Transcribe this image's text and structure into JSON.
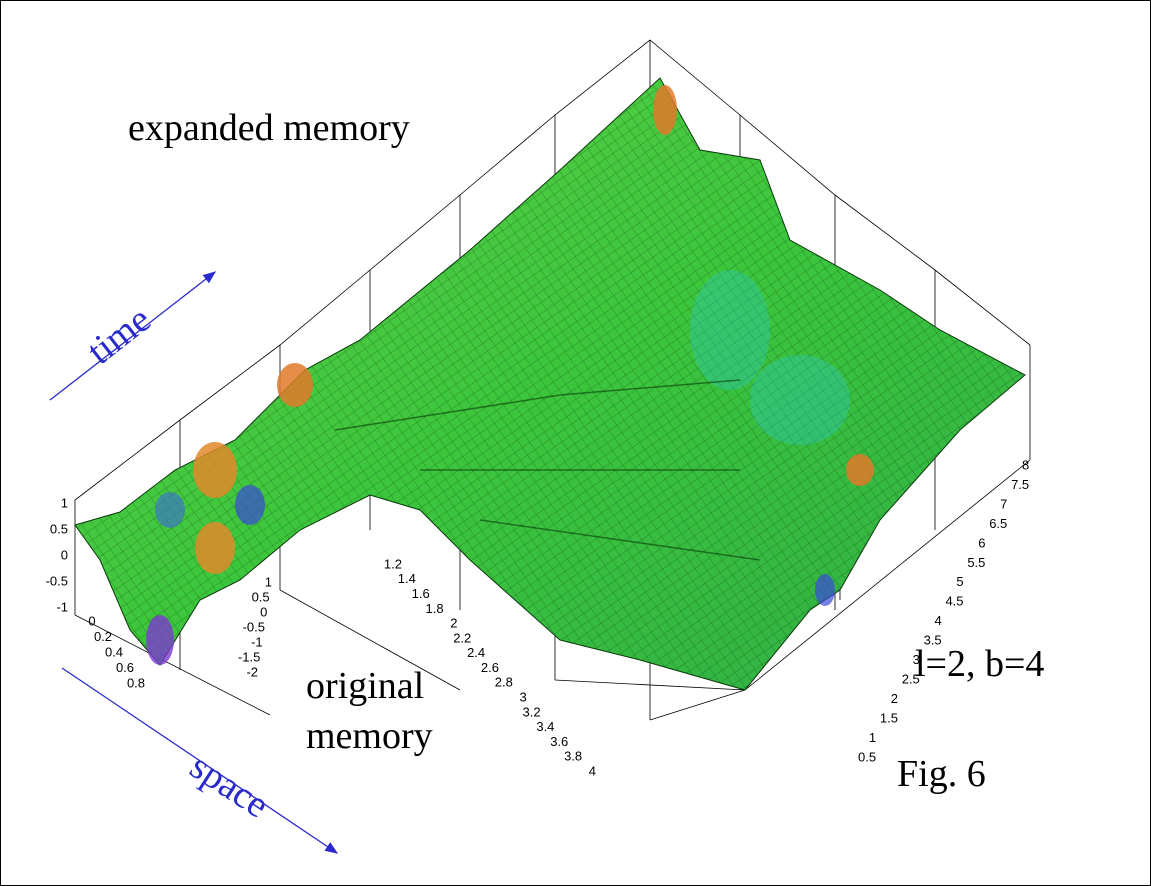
{
  "labels": {
    "expanded": "expanded memory",
    "time": "time",
    "space": "space",
    "original_line1": "original",
    "original_line2": "memory",
    "params": "l=2, b=4",
    "figure": "Fig. 6"
  },
  "axes": {
    "z_ticks": [
      "1",
      "0.5",
      "0",
      "-0.5",
      "-1"
    ],
    "x_ticks": [
      "0",
      "0.2",
      "0.4",
      "0.6",
      "0.8"
    ],
    "t_ticks": [
      "1",
      "0.5",
      "0",
      "-0.5",
      "-1",
      "-1.5",
      "-2"
    ],
    "middle_ticks": [
      "1.2",
      "1.4",
      "1.6",
      "1.8",
      "2",
      "2.2",
      "2.4",
      "2.6",
      "2.8",
      "3",
      "3.2",
      "3.4",
      "3.6",
      "3.8",
      "4"
    ],
    "right_ticks": [
      "8",
      "7.5",
      "7",
      "6.5",
      "6",
      "5.5",
      "5",
      "4.5",
      "4",
      "3.5",
      "3",
      "2.5",
      "2",
      "1.5",
      "1",
      "0.5"
    ]
  }
}
